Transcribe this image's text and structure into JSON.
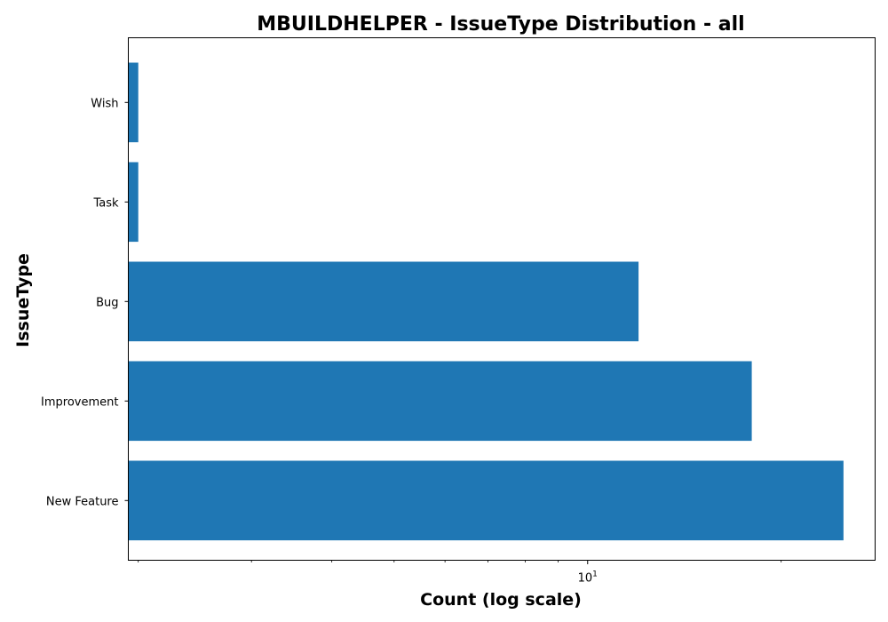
{
  "chart_data": {
    "type": "bar",
    "orientation": "horizontal",
    "title": "MBUILDHELPER - IssueType Distribution - all",
    "xlabel": "Count (log scale)",
    "ylabel": "IssueType",
    "x_scale": "log",
    "xlim": [
      1.93,
      28
    ],
    "x_major_ticks": [
      {
        "value": 10,
        "label_base": "10",
        "label_exp": "1"
      }
    ],
    "x_minor_ticks": [
      2,
      3,
      4,
      5,
      6,
      7,
      8,
      9,
      20
    ],
    "categories": [
      "New Feature",
      "Improvement",
      "Bug",
      "Task",
      "Wish"
    ],
    "values": [
      25,
      18,
      12,
      2,
      2
    ],
    "bar_color": "#1f77b4",
    "grid": false,
    "legend": "none"
  }
}
